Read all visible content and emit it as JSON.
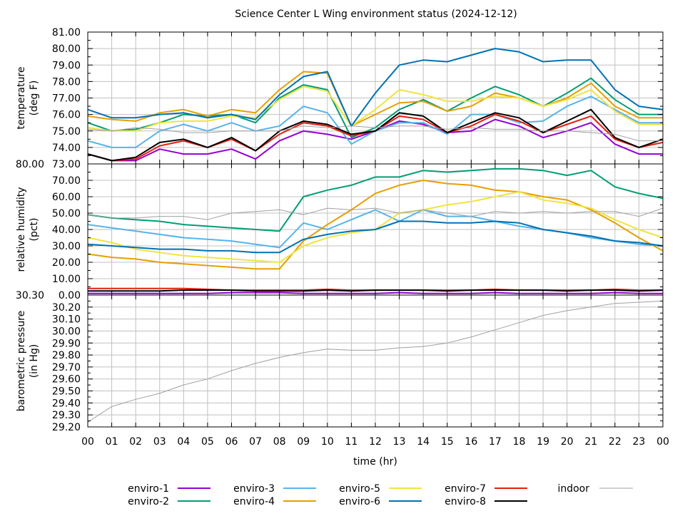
{
  "chart_data": {
    "type": "line",
    "title": "Science Center L Wing environment status (2024-12-12)",
    "xlabel": "time (hr)",
    "x": [
      0,
      1,
      2,
      3,
      4,
      5,
      6,
      7,
      8,
      9,
      10,
      11,
      12,
      13,
      14,
      15,
      16,
      17,
      18,
      19,
      20,
      21,
      22,
      23,
      24
    ],
    "xticklabels": [
      "00",
      "01",
      "02",
      "03",
      "04",
      "05",
      "06",
      "07",
      "08",
      "09",
      "10",
      "11",
      "12",
      "13",
      "14",
      "15",
      "16",
      "17",
      "18",
      "19",
      "20",
      "21",
      "22",
      "23",
      "00"
    ],
    "xlim": [
      0,
      24
    ],
    "grid": true,
    "legend_placement": "bottom",
    "colors": {
      "enviro-1": "#9400d3",
      "enviro-2": "#009e73",
      "enviro-3": "#56b4e9",
      "enviro-4": "#e69f00",
      "enviro-5": "#f0e442",
      "enviro-6": "#0072b2",
      "enviro-7": "#e51e10",
      "enviro-8": "#000000",
      "indoor": "#a0a0a0"
    },
    "legend": [
      "enviro-1",
      "enviro-2",
      "enviro-3",
      "enviro-4",
      "enviro-5",
      "enviro-6",
      "enviro-7",
      "enviro-8",
      "indoor"
    ],
    "panels": [
      {
        "ylabel": [
          "temperature",
          "(deg F)"
        ],
        "ylim": [
          73,
          81
        ],
        "yticks": [
          "73.00",
          "74.00",
          "75.00",
          "76.00",
          "77.00",
          "78.00",
          "79.00",
          "80.00",
          "81.00"
        ],
        "series": [
          {
            "name": "enviro-1",
            "values": [
              73.6,
              73.2,
              73.2,
              73.9,
              73.6,
              73.6,
              73.9,
              73.3,
              74.4,
              75.0,
              74.8,
              74.5,
              75.0,
              75.6,
              75.4,
              74.9,
              75.0,
              75.7,
              75.3,
              74.6,
              75.0,
              75.5,
              74.2,
              73.6,
              73.6
            ]
          },
          {
            "name": "enviro-2",
            "values": [
              75.5,
              75.0,
              75.1,
              75.5,
              76.0,
              75.9,
              76.0,
              75.5,
              77.0,
              77.8,
              77.5,
              74.6,
              75.2,
              76.3,
              76.9,
              76.2,
              77.0,
              77.7,
              77.2,
              76.5,
              77.3,
              78.2,
              76.9,
              76.0,
              76.0
            ]
          },
          {
            "name": "enviro-3",
            "values": [
              74.4,
              74.0,
              74.0,
              75.0,
              75.4,
              75.0,
              75.5,
              75.0,
              75.3,
              76.5,
              76.1,
              74.2,
              75.0,
              75.5,
              75.5,
              74.8,
              76.0,
              76.0,
              75.5,
              75.6,
              76.5,
              77.1,
              76.3,
              75.5,
              75.5
            ]
          },
          {
            "name": "enviro-4",
            "values": [
              75.9,
              75.7,
              75.6,
              76.1,
              76.3,
              75.9,
              76.3,
              76.1,
              77.5,
              78.6,
              78.5,
              75.3,
              76.0,
              76.7,
              76.8,
              76.2,
              76.5,
              77.3,
              77.0,
              76.5,
              77.0,
              77.9,
              76.5,
              75.8,
              75.8
            ]
          },
          {
            "name": "enviro-5",
            "values": [
              75.2,
              75.0,
              75.0,
              75.5,
              75.6,
              75.6,
              75.9,
              75.8,
              76.9,
              77.7,
              77.4,
              75.3,
              76.3,
              77.5,
              77.2,
              76.8,
              76.8,
              77.1,
              77.0,
              76.5,
              76.9,
              77.5,
              76.2,
              75.4,
              75.4
            ]
          },
          {
            "name": "enviro-6",
            "values": [
              76.3,
              75.8,
              75.8,
              76.0,
              76.1,
              75.8,
              76.0,
              75.7,
              77.2,
              78.3,
              78.6,
              75.3,
              77.3,
              79.0,
              79.3,
              79.2,
              79.6,
              80.0,
              79.8,
              79.2,
              79.3,
              79.3,
              77.5,
              76.5,
              76.3
            ]
          },
          {
            "name": "enviro-7",
            "values": [
              73.6,
              73.2,
              73.3,
              74.1,
              74.4,
              74.0,
              74.5,
              73.8,
              74.8,
              75.5,
              75.3,
              74.7,
              75.0,
              75.9,
              75.7,
              74.9,
              75.3,
              76.0,
              75.6,
              74.9,
              75.4,
              75.9,
              74.5,
              74.0,
              74.3
            ]
          },
          {
            "name": "enviro-8",
            "values": [
              73.6,
              73.2,
              73.4,
              74.3,
              74.5,
              74.0,
              74.6,
              73.8,
              75.0,
              75.6,
              75.4,
              74.8,
              75.0,
              76.1,
              75.9,
              74.9,
              75.5,
              76.1,
              75.8,
              74.9,
              75.6,
              76.3,
              74.6,
              74.0,
              74.5
            ]
          },
          {
            "name": "indoor",
            "values": [
              75.1,
              75.0,
              75.2,
              75.1,
              74.9,
              74.9,
              75.0,
              75.0,
              75.0,
              75.3,
              75.2,
              75.3,
              75.2,
              75.3,
              75.3,
              75.1,
              75.2,
              75.1,
              75.1,
              75.0,
              75.0,
              74.9,
              74.8,
              74.4,
              74.4
            ]
          }
        ]
      },
      {
        "ylabel": [
          "relative humidity",
          "(pct)"
        ],
        "ylim": [
          0,
          80
        ],
        "yticks": [
          "0.00",
          "10.00",
          "20.00",
          "30.00",
          "40.00",
          "50.00",
          "60.00",
          "70.00",
          "80.00"
        ],
        "series": [
          {
            "name": "enviro-1",
            "values": [
              1,
              1,
              1,
              1,
              1,
              1,
              1.5,
              1.5,
              1.5,
              1,
              1,
              1,
              1,
              1.5,
              1,
              1,
              1,
              1.5,
              1,
              1,
              1,
              1,
              1.5,
              1,
              1
            ]
          },
          {
            "name": "enviro-2",
            "values": [
              49,
              47,
              46,
              45,
              43,
              42,
              41,
              40,
              39,
              60,
              64,
              67,
              72,
              72,
              76,
              75,
              76,
              77,
              77,
              76,
              73,
              76,
              66,
              62,
              59
            ]
          },
          {
            "name": "enviro-3",
            "values": [
              43,
              41,
              39,
              37,
              35,
              34,
              33,
              31,
              29,
              44,
              40,
              46,
              52,
              45,
              52,
              48,
              48,
              45,
              42,
              40,
              38,
              35,
              33,
              31,
              30
            ]
          },
          {
            "name": "enviro-4",
            "values": [
              25,
              23,
              22,
              20,
              19,
              18,
              17,
              16,
              16,
              33,
              43,
              52,
              62,
              67,
              70,
              68,
              67,
              64,
              63,
              60,
              58,
              52,
              44,
              35,
              27
            ]
          },
          {
            "name": "enviro-5",
            "values": [
              35,
              32,
              28,
              26,
              24,
              23,
              22,
              21,
              20,
              30,
              35,
              38,
              40,
              50,
              52,
              55,
              57,
              60,
              63,
              58,
              56,
              53,
              46,
              40,
              35
            ]
          },
          {
            "name": "enviro-6",
            "values": [
              31,
              30,
              29,
              28,
              28,
              27,
              27,
              26,
              26,
              34,
              37,
              39,
              40,
              45,
              45,
              44,
              44,
              45,
              44,
              40,
              38,
              36,
              33,
              32,
              30
            ]
          },
          {
            "name": "enviro-7",
            "values": [
              4,
              4,
              4,
              4,
              4,
              3.5,
              3,
              3,
              3,
              3,
              3.5,
              3,
              3,
              3,
              3,
              3,
              3,
              3.5,
              3,
              3,
              3,
              3,
              3.5,
              3,
              3
            ]
          },
          {
            "name": "enviro-8",
            "values": [
              2.5,
              2.5,
              2.5,
              2.5,
              3,
              3,
              3,
              2.5,
              2.5,
              2.5,
              3,
              2.5,
              3,
              3,
              3,
              2.5,
              3,
              3,
              3,
              3,
              2.5,
              3,
              3,
              2.5,
              3
            ]
          },
          {
            "name": "indoor",
            "values": [
              49,
              47,
              47,
              48,
              48,
              46,
              50,
              51,
              52,
              49,
              53,
              52,
              53,
              50,
              52,
              50,
              48,
              51,
              50,
              51,
              50,
              51,
              51,
              48,
              53
            ]
          }
        ]
      },
      {
        "ylabel": [
          "barometric pressure",
          "(in Hg)"
        ],
        "ylim": [
          29.2,
          30.3
        ],
        "yticks": [
          "29.20",
          "29.30",
          "29.40",
          "29.50",
          "29.60",
          "29.70",
          "29.80",
          "29.90",
          "30.00",
          "30.10",
          "30.20",
          "30.30"
        ],
        "series": [
          {
            "name": "indoor",
            "values": [
              29.24,
              29.37,
              29.43,
              29.48,
              29.55,
              29.6,
              29.67,
              29.73,
              29.78,
              29.82,
              29.85,
              29.84,
              29.84,
              29.86,
              29.87,
              29.9,
              29.95,
              30.01,
              30.07,
              30.13,
              30.17,
              30.2,
              30.23,
              30.24,
              30.25
            ]
          }
        ]
      }
    ]
  }
}
